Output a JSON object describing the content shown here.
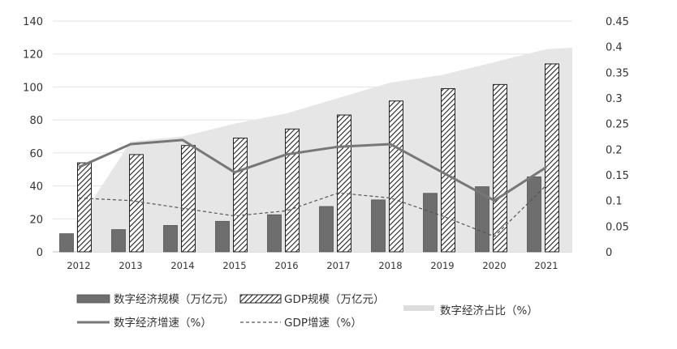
{
  "chart_data": {
    "type": "bar",
    "categories": [
      "2012",
      "2013",
      "2014",
      "2015",
      "2016",
      "2017",
      "2018",
      "2019",
      "2020",
      "2021"
    ],
    "left_axis": {
      "min": 0,
      "max": 140,
      "step": 20,
      "ticks": [
        "0",
        "20",
        "40",
        "60",
        "80",
        "100",
        "120",
        "140"
      ]
    },
    "right_axis": {
      "min": 0,
      "max": 0.45,
      "step": 0.05,
      "ticks": [
        "0",
        "0.05",
        "0.1",
        "0.15",
        "0.2",
        "0.25",
        "0.3",
        "0.35",
        "0.4",
        "0.45"
      ]
    },
    "series": [
      {
        "name": "数字经济规模（万亿元）",
        "kind": "bar",
        "axis": "left",
        "color": "#6e6e6e",
        "values": [
          11,
          13.5,
          16,
          18.5,
          22.5,
          27.5,
          31.5,
          35.5,
          39.5,
          45.5
        ]
      },
      {
        "name": "GDP规模（万亿元）",
        "kind": "bar-hatched",
        "axis": "left",
        "color": "#222222",
        "values": [
          54,
          59,
          64.5,
          69,
          74.5,
          83,
          91.5,
          99,
          101.5,
          114
        ]
      },
      {
        "name": "数字经济占比（%）",
        "kind": "area",
        "axis": "right",
        "color": "#e6e6e6",
        "values": [
          0.06,
          0.215,
          0.225,
          0.25,
          0.27,
          0.3,
          0.33,
          0.345,
          0.37,
          0.395
        ]
      },
      {
        "name": "数字经济增速（%）",
        "kind": "line",
        "axis": "right",
        "color": "#777777",
        "values": [
          0.165,
          0.21,
          0.218,
          0.155,
          0.19,
          0.205,
          0.21,
          0.155,
          0.1,
          0.165
        ]
      },
      {
        "name": "GDP增速（%）",
        "kind": "dashed-line",
        "axis": "right",
        "color": "#555555",
        "values": [
          0.105,
          0.1,
          0.085,
          0.07,
          0.08,
          0.115,
          0.105,
          0.07,
          0.03,
          0.13
        ]
      }
    ],
    "grid": true,
    "legend": "bottom"
  }
}
